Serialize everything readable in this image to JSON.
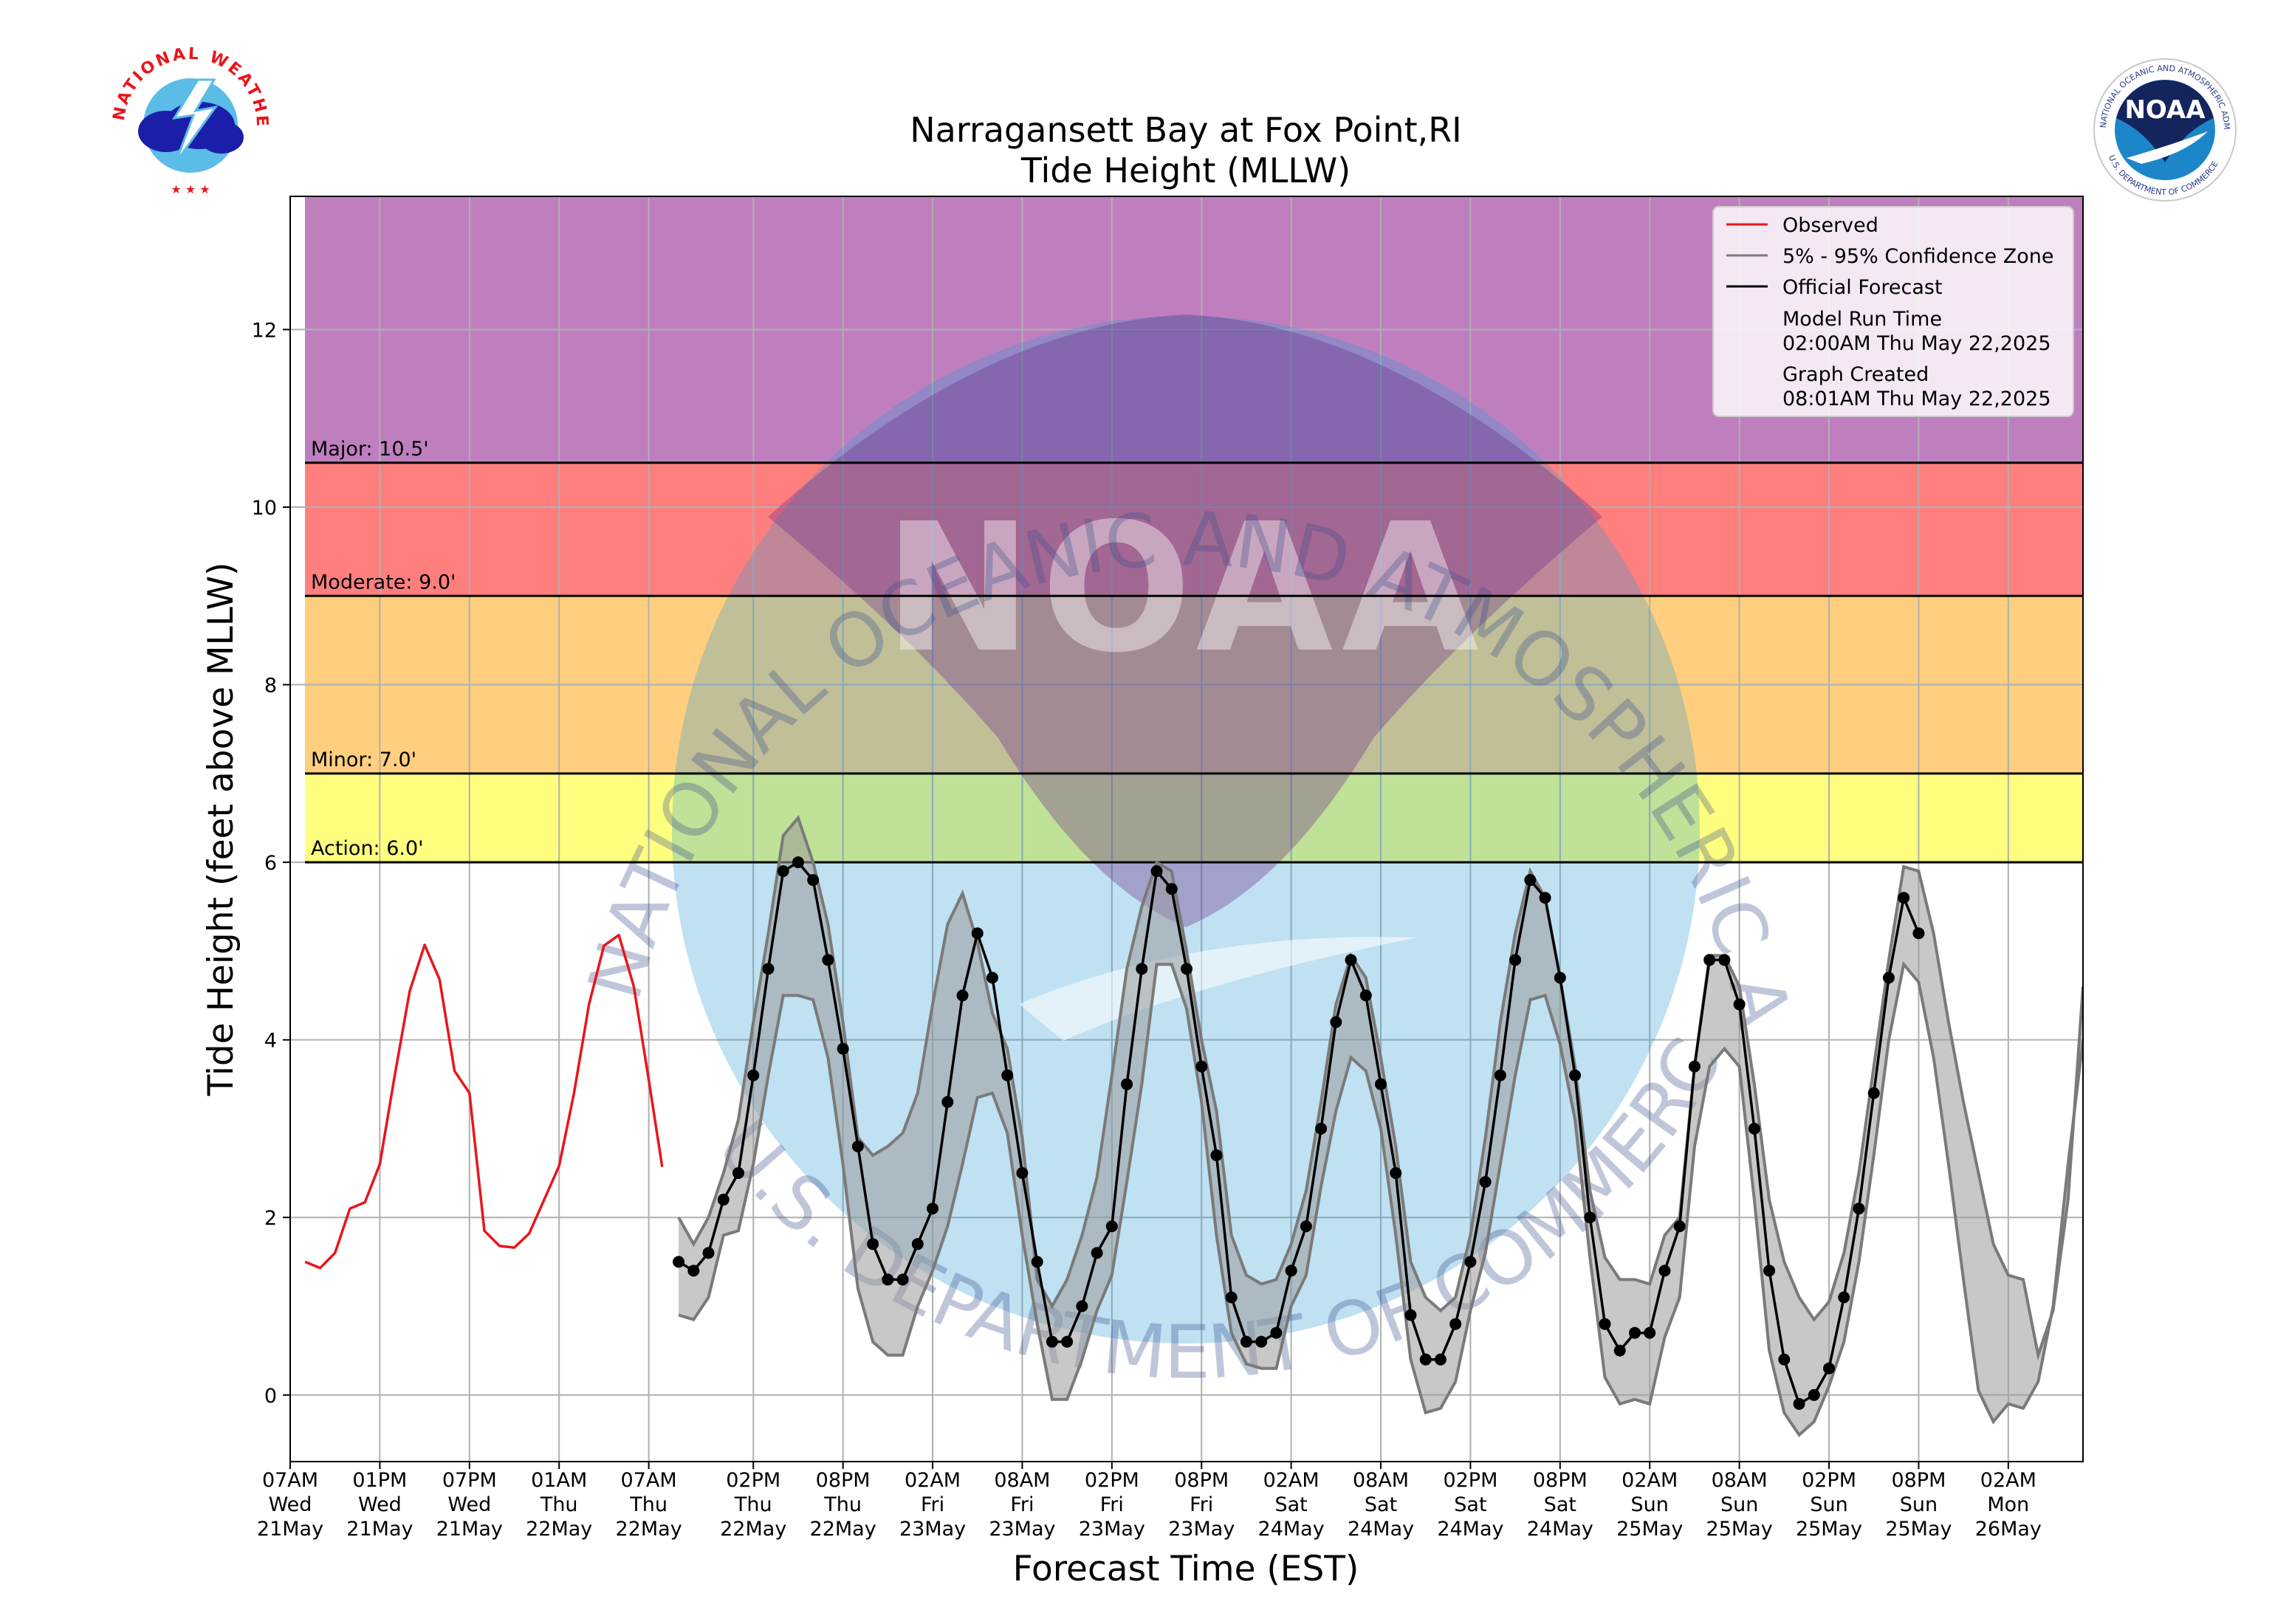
{
  "title": {
    "line1": "Narragansett Bay at Fox Point,RI",
    "line2": "Tide Height (MLLW)"
  },
  "logos": {
    "nws": {
      "text": "NATIONAL WEATHER SERVICE"
    },
    "noaa": {
      "text": "NOAA",
      "ring_text": "NATIONAL OCEANIC AND ATMOSPHERIC ADMINISTRATION",
      "ring_bottom": "U.S. DEPARTMENT OF COMMERCE"
    }
  },
  "watermark": {
    "arc_top": "NATIONAL OCEANIC AND ATMOSPHERIC ADMINISTRATION",
    "arc_bottom": "U.S. DEPARTMENT OF COMMERCE",
    "center": "NOAA"
  },
  "legend": {
    "observed": "Observed",
    "confidence": "5% - 95% Confidence Zone",
    "forecast": "Official Forecast",
    "model_run_label": "Model Run Time",
    "model_run_value": "02:00AM Thu May 22,2025",
    "graph_created_label": "Graph Created",
    "graph_created_value": "08:01AM Thu May 22,2025"
  },
  "colors": {
    "observed": "#e8161b",
    "forecast": "#000000",
    "confidence_fill": "#9a9a9a",
    "confidence_edge": "#7a7a7a",
    "major": "#bf7fbf",
    "moderate": "#ff7f7f",
    "minor": "#ffcf7f",
    "action": "#ffff7f",
    "grid": "#b0b0b0"
  },
  "chart_data": {
    "type": "line",
    "xlabel": "Forecast Time (EST)",
    "ylabel": "Tide Height (feet above MLLW)",
    "x_unit": "hours since 07AM Wed 21May",
    "xlim": [
      0,
      120
    ],
    "ylim": [
      -0.75,
      13.5
    ],
    "yticks": [
      0,
      2,
      4,
      6,
      8,
      10,
      12
    ],
    "xticks": [
      {
        "h": 0,
        "lines": [
          "07AM",
          "Wed",
          "21May"
        ]
      },
      {
        "h": 6,
        "lines": [
          "01PM",
          "Wed",
          "21May"
        ]
      },
      {
        "h": 12,
        "lines": [
          "07PM",
          "Wed",
          "21May"
        ]
      },
      {
        "h": 18,
        "lines": [
          "01AM",
          "Thu",
          "22May"
        ]
      },
      {
        "h": 24,
        "lines": [
          "07AM",
          "Thu",
          "22May"
        ]
      },
      {
        "h": 31,
        "lines": [
          "02PM",
          "Thu",
          "22May"
        ]
      },
      {
        "h": 37,
        "lines": [
          "08PM",
          "Thu",
          "22May"
        ]
      },
      {
        "h": 43,
        "lines": [
          "02AM",
          "Fri",
          "23May"
        ]
      },
      {
        "h": 49,
        "lines": [
          "08AM",
          "Fri",
          "23May"
        ]
      },
      {
        "h": 55,
        "lines": [
          "02PM",
          "Fri",
          "23May"
        ]
      },
      {
        "h": 61,
        "lines": [
          "08PM",
          "Fri",
          "23May"
        ]
      },
      {
        "h": 67,
        "lines": [
          "02AM",
          "Sat",
          "24May"
        ]
      },
      {
        "h": 73,
        "lines": [
          "08AM",
          "Sat",
          "24May"
        ]
      },
      {
        "h": 79,
        "lines": [
          "02PM",
          "Sat",
          "24May"
        ]
      },
      {
        "h": 85,
        "lines": [
          "08PM",
          "Sat",
          "24May"
        ]
      },
      {
        "h": 91,
        "lines": [
          "02AM",
          "Sun",
          "25May"
        ]
      },
      {
        "h": 97,
        "lines": [
          "08AM",
          "Sun",
          "25May"
        ]
      },
      {
        "h": 103,
        "lines": [
          "02PM",
          "Sun",
          "25May"
        ]
      },
      {
        "h": 109,
        "lines": [
          "08PM",
          "Sun",
          "25May"
        ]
      },
      {
        "h": 115,
        "lines": [
          "02AM",
          "Mon",
          "26May"
        ]
      }
    ],
    "thresholds": [
      {
        "name": "Major",
        "label": "Major: 10.5'",
        "value": 10.5,
        "band_to": 13.5,
        "color": "#bf7fbf"
      },
      {
        "name": "Moderate",
        "label": "Moderate: 9.0'",
        "value": 9.0,
        "band_to": 10.5,
        "color": "#ff7f7f"
      },
      {
        "name": "Minor",
        "label": "Minor: 7.0'",
        "value": 7.0,
        "band_to": 9.0,
        "color": "#ffcf7f"
      },
      {
        "name": "Action",
        "label": "Action: 6.0'",
        "value": 6.0,
        "band_to": 7.0,
        "color": "#ffff7f"
      }
    ],
    "observed": [
      [
        1,
        1.5
      ],
      [
        2,
        1.43
      ],
      [
        3,
        1.6
      ],
      [
        4,
        2.1
      ],
      [
        5,
        2.17
      ],
      [
        6,
        2.6
      ],
      [
        7,
        3.6
      ],
      [
        8,
        4.55
      ],
      [
        9,
        5.07
      ],
      [
        10,
        4.68
      ],
      [
        11,
        3.65
      ],
      [
        12,
        3.4
      ],
      [
        13,
        1.85
      ],
      [
        14,
        1.68
      ],
      [
        15,
        1.66
      ],
      [
        16,
        1.82
      ],
      [
        17,
        2.2
      ],
      [
        18,
        2.58
      ],
      [
        19,
        3.4
      ],
      [
        20,
        4.4
      ],
      [
        21,
        5.06
      ],
      [
        22,
        5.18
      ],
      [
        23,
        4.6
      ],
      [
        24,
        3.55
      ],
      [
        24.9,
        2.57
      ]
    ],
    "forecast": [
      [
        26,
        1.5
      ],
      [
        27,
        1.4
      ],
      [
        28,
        1.6
      ],
      [
        29,
        2.2
      ],
      [
        30,
        2.5
      ],
      [
        31,
        3.6
      ],
      [
        32,
        4.8
      ],
      [
        33,
        5.9
      ],
      [
        34,
        6.0
      ],
      [
        35,
        5.8
      ],
      [
        36,
        4.9
      ],
      [
        37,
        3.9
      ],
      [
        38,
        2.8
      ],
      [
        39,
        1.7
      ],
      [
        40,
        1.3
      ],
      [
        41,
        1.3
      ],
      [
        42,
        1.7
      ],
      [
        43,
        2.1
      ],
      [
        44,
        3.3
      ],
      [
        45,
        4.5
      ],
      [
        46,
        5.2
      ],
      [
        47,
        4.7
      ],
      [
        48,
        3.6
      ],
      [
        49,
        2.5
      ],
      [
        50,
        1.5
      ],
      [
        51,
        0.6
      ],
      [
        52,
        0.6
      ],
      [
        53,
        1.0
      ],
      [
        54,
        1.6
      ],
      [
        55,
        1.9
      ],
      [
        56,
        3.5
      ],
      [
        57,
        4.8
      ],
      [
        58,
        5.9
      ],
      [
        59,
        5.7
      ],
      [
        60,
        4.8
      ],
      [
        61,
        3.7
      ],
      [
        62,
        2.7
      ],
      [
        63,
        1.1
      ],
      [
        64,
        0.6
      ],
      [
        65,
        0.6
      ],
      [
        66,
        0.7
      ],
      [
        67,
        1.4
      ],
      [
        68,
        1.9
      ],
      [
        69,
        3.0
      ],
      [
        70,
        4.2
      ],
      [
        71,
        4.9
      ],
      [
        72,
        4.5
      ],
      [
        73,
        3.5
      ],
      [
        74,
        2.5
      ],
      [
        75,
        0.9
      ],
      [
        76,
        0.4
      ],
      [
        77,
        0.4
      ],
      [
        78,
        0.8
      ],
      [
        79,
        1.5
      ],
      [
        80,
        2.4
      ],
      [
        81,
        3.6
      ],
      [
        82,
        4.9
      ],
      [
        83,
        5.8
      ],
      [
        84,
        5.6
      ],
      [
        85,
        4.7
      ],
      [
        86,
        3.6
      ],
      [
        87,
        2.0
      ],
      [
        88,
        0.8
      ],
      [
        89,
        0.5
      ],
      [
        90,
        0.7
      ],
      [
        91,
        0.7
      ],
      [
        92,
        1.4
      ],
      [
        93,
        1.9
      ],
      [
        94,
        3.7
      ],
      [
        95,
        4.9
      ],
      [
        96,
        4.9
      ],
      [
        97,
        4.4
      ],
      [
        98,
        3.0
      ],
      [
        99,
        1.4
      ],
      [
        100,
        0.4
      ],
      [
        101,
        -0.1
      ],
      [
        102,
        0.0
      ],
      [
        103,
        0.3
      ],
      [
        104,
        1.1
      ],
      [
        105,
        2.1
      ],
      [
        106,
        3.4
      ],
      [
        107,
        4.7
      ],
      [
        108,
        5.6
      ],
      [
        109,
        5.2
      ]
    ],
    "confidence_upper": [
      [
        26,
        2.0
      ],
      [
        27,
        1.7
      ],
      [
        28,
        2.0
      ],
      [
        29,
        2.5
      ],
      [
        30,
        3.1
      ],
      [
        31,
        4.2
      ],
      [
        32,
        5.2
      ],
      [
        33,
        6.3
      ],
      [
        34,
        6.5
      ],
      [
        35,
        6.0
      ],
      [
        36,
        5.3
      ],
      [
        37,
        4.2
      ],
      [
        38,
        2.9
      ],
      [
        39,
        2.7
      ],
      [
        40,
        2.8
      ],
      [
        41,
        2.95
      ],
      [
        42,
        3.4
      ],
      [
        43,
        4.4
      ],
      [
        44,
        5.3
      ],
      [
        45,
        5.65
      ],
      [
        46,
        5.1
      ],
      [
        47,
        4.3
      ],
      [
        48,
        3.9
      ],
      [
        49,
        2.9
      ],
      [
        50,
        1.3
      ],
      [
        51,
        1.0
      ],
      [
        52,
        1.3
      ],
      [
        53,
        1.8
      ],
      [
        54,
        2.45
      ],
      [
        55,
        3.6
      ],
      [
        56,
        4.8
      ],
      [
        57,
        5.5
      ],
      [
        58,
        6.0
      ],
      [
        59,
        5.9
      ],
      [
        60,
        5.0
      ],
      [
        61,
        4.0
      ],
      [
        62,
        3.2
      ],
      [
        63,
        1.8
      ],
      [
        64,
        1.35
      ],
      [
        65,
        1.25
      ],
      [
        66,
        1.3
      ],
      [
        67,
        1.7
      ],
      [
        68,
        2.3
      ],
      [
        69,
        3.3
      ],
      [
        70,
        4.4
      ],
      [
        71,
        4.95
      ],
      [
        72,
        4.7
      ],
      [
        73,
        3.8
      ],
      [
        74,
        2.8
      ],
      [
        75,
        1.5
      ],
      [
        76,
        1.1
      ],
      [
        77,
        0.95
      ],
      [
        78,
        1.1
      ],
      [
        79,
        1.8
      ],
      [
        80,
        2.9
      ],
      [
        81,
        4.2
      ],
      [
        82,
        5.2
      ],
      [
        83,
        5.9
      ],
      [
        84,
        5.6
      ],
      [
        85,
        4.7
      ],
      [
        86,
        3.7
      ],
      [
        87,
        2.3
      ],
      [
        88,
        1.55
      ],
      [
        89,
        1.3
      ],
      [
        90,
        1.3
      ],
      [
        91,
        1.25
      ],
      [
        92,
        1.8
      ],
      [
        93,
        2.0
      ],
      [
        94,
        3.7
      ],
      [
        95,
        4.95
      ],
      [
        96,
        4.95
      ],
      [
        97,
        4.6
      ],
      [
        98,
        3.5
      ],
      [
        99,
        2.2
      ],
      [
        100,
        1.5
      ],
      [
        101,
        1.1
      ],
      [
        102,
        0.85
      ],
      [
        103,
        1.05
      ],
      [
        104,
        1.6
      ],
      [
        105,
        2.5
      ],
      [
        106,
        3.7
      ],
      [
        107,
        4.9
      ],
      [
        108,
        5.95
      ],
      [
        109,
        5.9
      ],
      [
        110,
        5.2
      ],
      [
        111,
        4.2
      ],
      [
        112,
        3.3
      ],
      [
        113,
        2.5
      ],
      [
        114,
        1.7
      ],
      [
        115,
        1.35
      ],
      [
        116,
        1.3
      ],
      [
        117,
        0.45
      ],
      [
        118,
        0.95
      ],
      [
        119,
        2.2
      ],
      [
        120,
        4.6
      ]
    ],
    "confidence_lower": [
      [
        26,
        0.9
      ],
      [
        27,
        0.85
      ],
      [
        28,
        1.1
      ],
      [
        29,
        1.8
      ],
      [
        30,
        1.85
      ],
      [
        31,
        2.6
      ],
      [
        32,
        3.6
      ],
      [
        33,
        4.5
      ],
      [
        34,
        4.5
      ],
      [
        35,
        4.45
      ],
      [
        36,
        3.8
      ],
      [
        37,
        2.6
      ],
      [
        38,
        1.2
      ],
      [
        39,
        0.6
      ],
      [
        40,
        0.45
      ],
      [
        41,
        0.45
      ],
      [
        42,
        1.0
      ],
      [
        43,
        1.4
      ],
      [
        44,
        1.9
      ],
      [
        45,
        2.6
      ],
      [
        46,
        3.35
      ],
      [
        47,
        3.4
      ],
      [
        48,
        2.95
      ],
      [
        49,
        1.8
      ],
      [
        50,
        0.8
      ],
      [
        51,
        -0.05
      ],
      [
        52,
        -0.05
      ],
      [
        53,
        0.4
      ],
      [
        54,
        0.95
      ],
      [
        55,
        1.35
      ],
      [
        56,
        2.4
      ],
      [
        57,
        3.5
      ],
      [
        58,
        4.85
      ],
      [
        59,
        4.85
      ],
      [
        60,
        4.35
      ],
      [
        61,
        3.3
      ],
      [
        62,
        1.8
      ],
      [
        63,
        0.7
      ],
      [
        64,
        0.35
      ],
      [
        65,
        0.3
      ],
      [
        66,
        0.3
      ],
      [
        67,
        1.0
      ],
      [
        68,
        1.35
      ],
      [
        69,
        2.35
      ],
      [
        70,
        3.2
      ],
      [
        71,
        3.8
      ],
      [
        72,
        3.65
      ],
      [
        73,
        3.0
      ],
      [
        74,
        1.8
      ],
      [
        75,
        0.4
      ],
      [
        76,
        -0.2
      ],
      [
        77,
        -0.15
      ],
      [
        78,
        0.15
      ],
      [
        79,
        0.95
      ],
      [
        80,
        1.6
      ],
      [
        81,
        2.6
      ],
      [
        82,
        3.6
      ],
      [
        83,
        4.45
      ],
      [
        84,
        4.5
      ],
      [
        85,
        3.95
      ],
      [
        86,
        3.1
      ],
      [
        87,
        1.55
      ],
      [
        88,
        0.2
      ],
      [
        89,
        -0.1
      ],
      [
        90,
        -0.05
      ],
      [
        91,
        -0.1
      ],
      [
        92,
        0.65
      ],
      [
        93,
        1.1
      ],
      [
        94,
        2.8
      ],
      [
        95,
        3.7
      ],
      [
        96,
        3.9
      ],
      [
        97,
        3.7
      ],
      [
        98,
        2.2
      ],
      [
        99,
        0.5
      ],
      [
        100,
        -0.2
      ],
      [
        101,
        -0.45
      ],
      [
        102,
        -0.3
      ],
      [
        103,
        0.1
      ],
      [
        104,
        0.6
      ],
      [
        105,
        1.5
      ],
      [
        106,
        2.7
      ],
      [
        107,
        4.0
      ],
      [
        108,
        4.85
      ],
      [
        109,
        4.65
      ],
      [
        110,
        3.8
      ],
      [
        111,
        2.6
      ],
      [
        112,
        1.3
      ],
      [
        113,
        0.05
      ],
      [
        114,
        -0.3
      ],
      [
        115,
        -0.1
      ],
      [
        116,
        -0.15
      ],
      [
        117,
        0.15
      ],
      [
        118,
        1.0
      ],
      [
        119,
        2.6
      ],
      [
        120,
        4.0
      ]
    ]
  }
}
